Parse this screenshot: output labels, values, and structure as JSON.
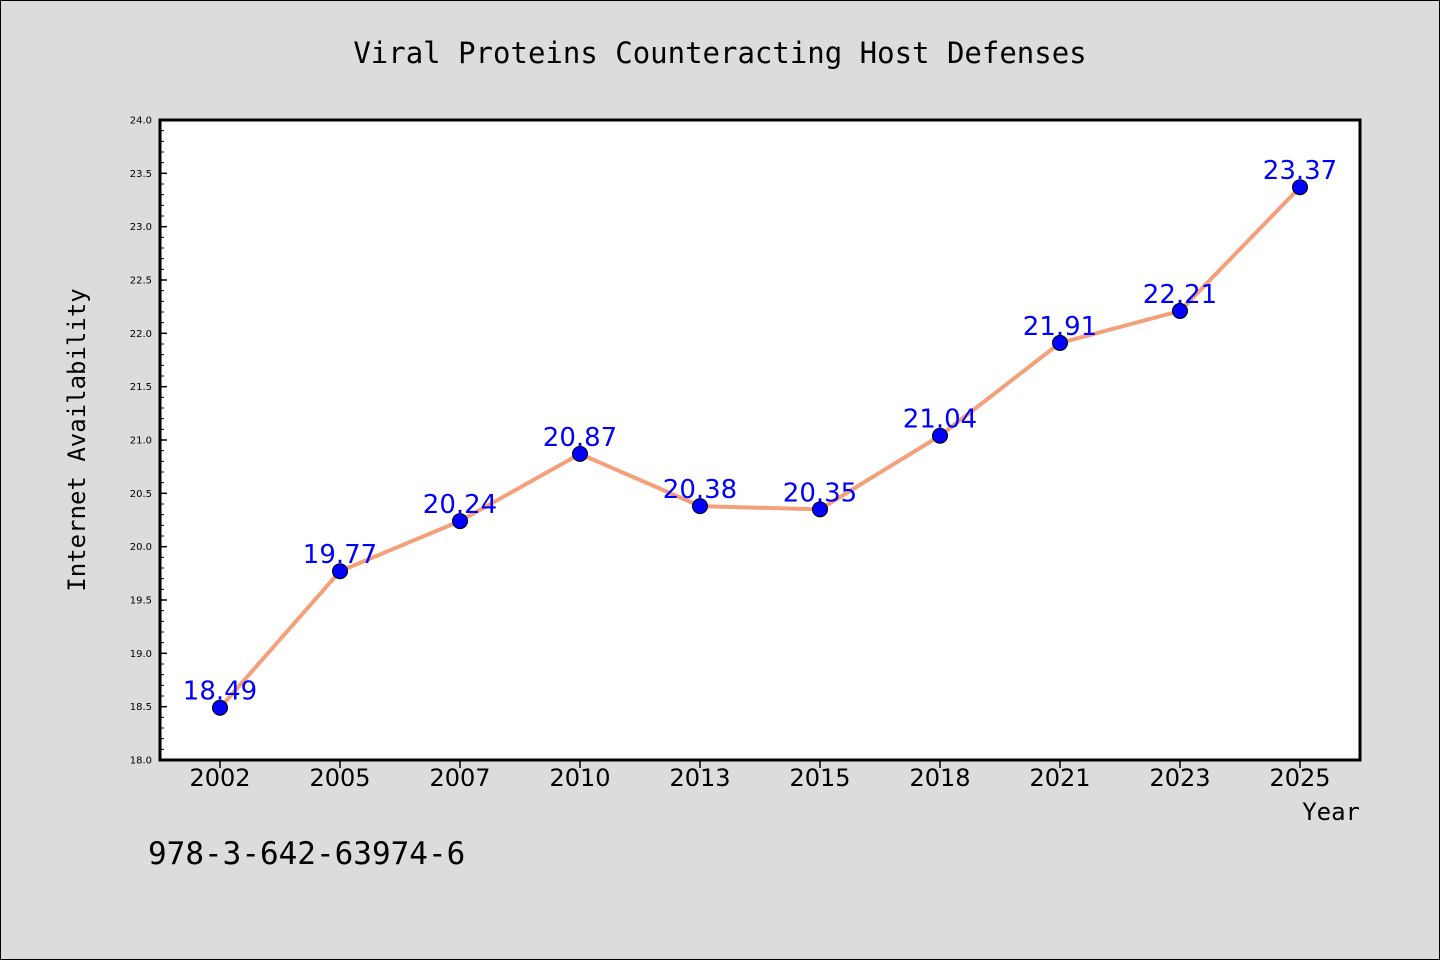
{
  "colors": {
    "background": "#dcdcdc",
    "plot_background": "#ffffff",
    "frame": "#000000",
    "line": "#f4a07a",
    "marker": "#0000ff",
    "label": "#0000ff",
    "text": "#000000"
  },
  "footer_code": "978-3-642-63974-6",
  "chart_data": {
    "type": "line",
    "title": "Viral Proteins Counteracting Host Defenses",
    "xlabel": "Year",
    "ylabel": "Internet Availability",
    "categories": [
      "2002",
      "2005",
      "2007",
      "2010",
      "2013",
      "2015",
      "2018",
      "2021",
      "2023",
      "2025"
    ],
    "series": [
      {
        "values": [
          18.49,
          19.77,
          20.24,
          20.87,
          20.38,
          20.35,
          21.04,
          21.91,
          22.21,
          23.37
        ]
      }
    ],
    "data_labels": [
      "18.49",
      "19.77",
      "20.24",
      "20.87",
      "20.38",
      "20.35",
      "21.04",
      "21.91",
      "22.21",
      "23.37"
    ],
    "ylim": [
      18.0,
      24.0
    ],
    "yticks": [
      "18.0",
      "18.5",
      "19.0",
      "19.5",
      "20.0",
      "20.5",
      "21.0",
      "21.5",
      "22.0",
      "22.5",
      "23.0",
      "23.5",
      "24.0"
    ],
    "grid": false,
    "legend": "none"
  }
}
